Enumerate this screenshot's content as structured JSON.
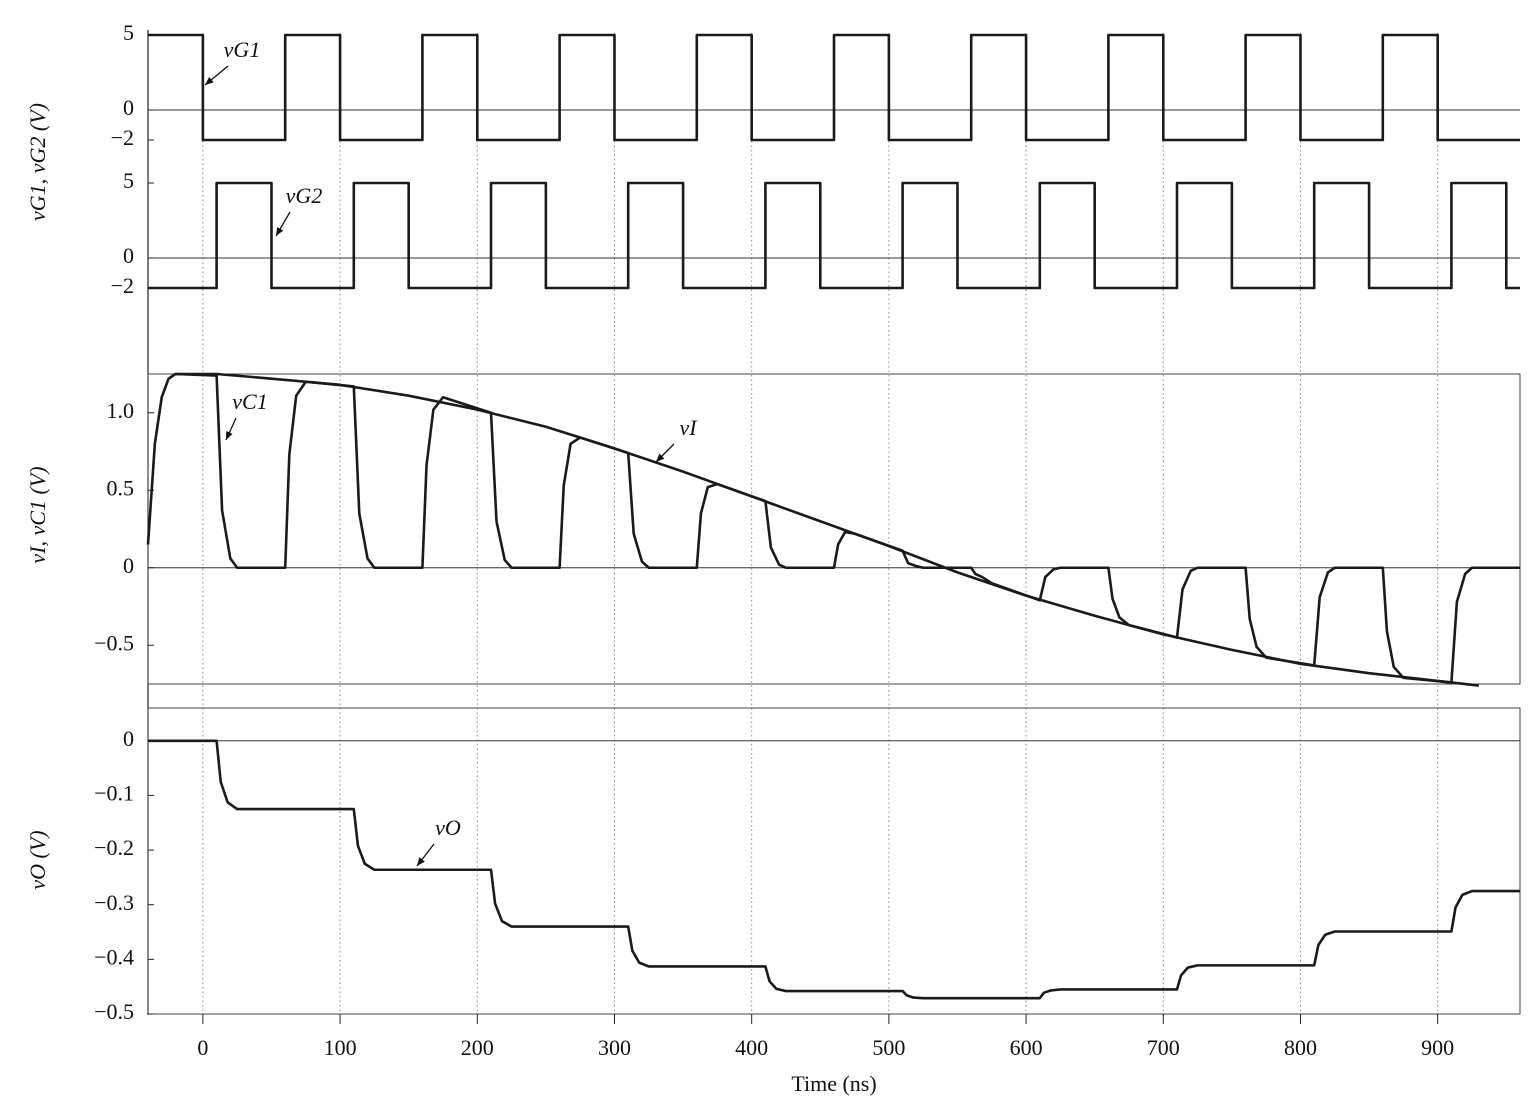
{
  "chart_data": [
    {
      "type": "line",
      "y_label": "vG1, vG2 (V)",
      "ylim": [
        -2,
        5
      ],
      "yticks": [
        5,
        0,
        {
          "value": -2,
          "label": "−2"
        }
      ],
      "series": [
        {
          "name": "vG1",
          "color": "#1a1a1a",
          "x": [
            -40,
            0,
            0,
            60,
            60,
            100,
            100,
            160,
            160,
            200,
            200,
            260,
            260,
            300,
            300,
            360,
            360,
            400,
            400,
            460,
            460,
            500,
            500,
            560,
            560,
            600,
            600,
            660,
            660,
            700,
            700,
            760,
            760,
            800,
            800,
            860,
            860,
            900,
            900,
            960
          ],
          "values": [
            5,
            5,
            -2,
            -2,
            5,
            5,
            -2,
            -2,
            5,
            5,
            -2,
            -2,
            5,
            5,
            -2,
            -2,
            5,
            5,
            -2,
            -2,
            5,
            5,
            -2,
            -2,
            5,
            5,
            -2,
            -2,
            5,
            5,
            -2,
            -2,
            5,
            5,
            -2,
            -2,
            5,
            5,
            -2,
            -2
          ]
        }
      ]
    },
    {
      "type": "line",
      "ylim": [
        -2,
        5
      ],
      "yticks": [
        5,
        0,
        {
          "value": -2,
          "label": "−2"
        }
      ],
      "series": [
        {
          "name": "vG2",
          "color": "#1a1a1a",
          "x": [
            -40,
            10,
            10,
            50,
            50,
            110,
            110,
            150,
            150,
            210,
            210,
            250,
            250,
            310,
            310,
            350,
            350,
            410,
            410,
            450,
            450,
            510,
            510,
            550,
            550,
            610,
            610,
            650,
            650,
            710,
            710,
            750,
            750,
            810,
            810,
            850,
            850,
            910,
            910,
            950,
            950,
            960
          ],
          "values": [
            -2,
            -2,
            5,
            5,
            -2,
            -2,
            5,
            5,
            -2,
            -2,
            5,
            5,
            -2,
            -2,
            5,
            5,
            -2,
            -2,
            5,
            5,
            -2,
            -2,
            5,
            5,
            -2,
            -2,
            5,
            5,
            -2,
            -2,
            5,
            5,
            -2,
            -2,
            5,
            5,
            -2,
            -2,
            5,
            5,
            -2,
            -2
          ]
        }
      ]
    },
    {
      "type": "line",
      "y_label": "vI, vC1 (V)",
      "ylim": [
        -0.75,
        1.25
      ],
      "yticks": [
        {
          "value": 1,
          "label": "1.0"
        },
        0.5,
        0,
        {
          "value": -0.5,
          "label": "−0.5"
        }
      ],
      "series": [
        {
          "name": "vC1",
          "color": "#1a1a1a",
          "x": [
            -40,
            -35,
            -30,
            -25,
            -20,
            10,
            14,
            20,
            25,
            60,
            63,
            68,
            75,
            110,
            114,
            120,
            125,
            160,
            163,
            168,
            175,
            210,
            214,
            220,
            225,
            260,
            263,
            268,
            275,
            310,
            314,
            320,
            325,
            360,
            363,
            368,
            375,
            410,
            414,
            420,
            425,
            460,
            463,
            468,
            475,
            510,
            514,
            520,
            525,
            560,
            563,
            568,
            575,
            610,
            614,
            620,
            625,
            660,
            663,
            668,
            675,
            710,
            714,
            720,
            725,
            760,
            763,
            768,
            775,
            810,
            814,
            820,
            825,
            860,
            863,
            868,
            875,
            910,
            914,
            920,
            925,
            960
          ],
          "values": [
            0.15,
            0.8,
            1.1,
            1.22,
            1.25,
            1.24,
            0.37,
            0.06,
            0,
            0,
            0.73,
            1.11,
            1.2,
            1.17,
            0.35,
            0.06,
            0,
            0,
            0.66,
            1.02,
            1.1,
            1.0,
            0.3,
            0.05,
            0,
            0,
            0.53,
            0.8,
            0.84,
            0.74,
            0.22,
            0.04,
            0,
            0,
            0.35,
            0.52,
            0.54,
            0.43,
            0.13,
            0.02,
            0,
            0,
            0.15,
            0.23,
            0.22,
            0.11,
            0.03,
            0.01,
            0,
            0,
            -0.04,
            -0.06,
            -0.1,
            -0.21,
            -0.06,
            -0.01,
            0,
            0,
            -0.2,
            -0.32,
            -0.37,
            -0.45,
            -0.14,
            -0.02,
            0,
            0,
            -0.33,
            -0.51,
            -0.58,
            -0.63,
            -0.19,
            -0.03,
            0,
            0,
            -0.41,
            -0.64,
            -0.71,
            -0.74,
            -0.22,
            -0.04,
            0,
            0
          ]
        },
        {
          "name": "vI",
          "color": "#1a1a1a",
          "x": [
            -20,
            10,
            50,
            100,
            150,
            200,
            250,
            300,
            350,
            400,
            450,
            500,
            550,
            600,
            650,
            700,
            750,
            800,
            850,
            900,
            930
          ],
          "values": [
            1.25,
            1.25,
            1.22,
            1.18,
            1.11,
            1.02,
            0.91,
            0.77,
            0.62,
            0.46,
            0.3,
            0.14,
            -0.03,
            -0.18,
            -0.31,
            -0.43,
            -0.53,
            -0.62,
            -0.68,
            -0.73,
            -0.76
          ]
        }
      ]
    },
    {
      "type": "line",
      "y_label": "vO (V)",
      "x_label": "Time (ns)",
      "ylim": [
        -0.5,
        0.06
      ],
      "yticks": [
        0,
        {
          "value": -0.1,
          "label": "−0.1"
        },
        {
          "value": -0.2,
          "label": "−0.2"
        },
        {
          "value": -0.3,
          "label": "−0.3"
        },
        {
          "value": -0.4,
          "label": "−0.4"
        },
        {
          "value": -0.5,
          "label": "−0.5"
        }
      ],
      "xlim": [
        -40,
        960
      ],
      "xticks": [
        0,
        100,
        200,
        300,
        400,
        500,
        600,
        700,
        800,
        900
      ],
      "grid": true,
      "series": [
        {
          "name": "vO",
          "color": "#1a1a1a",
          "x": [
            -40,
            10,
            13,
            18,
            25,
            110,
            113,
            118,
            125,
            210,
            213,
            218,
            225,
            310,
            313,
            318,
            325,
            410,
            413,
            418,
            425,
            510,
            513,
            518,
            525,
            610,
            613,
            618,
            625,
            710,
            713,
            718,
            725,
            810,
            813,
            818,
            825,
            910,
            913,
            918,
            925,
            960
          ],
          "values": [
            0,
            0,
            -0.075,
            -0.1125,
            -0.125,
            -0.125,
            -0.192,
            -0.225,
            -0.236,
            -0.236,
            -0.298,
            -0.33,
            -0.34,
            -0.34,
            -0.384,
            -0.406,
            -0.413,
            -0.413,
            -0.44,
            -0.454,
            -0.458,
            -0.458,
            -0.466,
            -0.47,
            -0.471,
            -0.471,
            -0.461,
            -0.457,
            -0.455,
            -0.455,
            -0.429,
            -0.415,
            -0.411,
            -0.411,
            -0.374,
            -0.355,
            -0.349,
            -0.349,
            -0.305,
            -0.282,
            -0.275,
            -0.275
          ]
        }
      ]
    }
  ]
}
